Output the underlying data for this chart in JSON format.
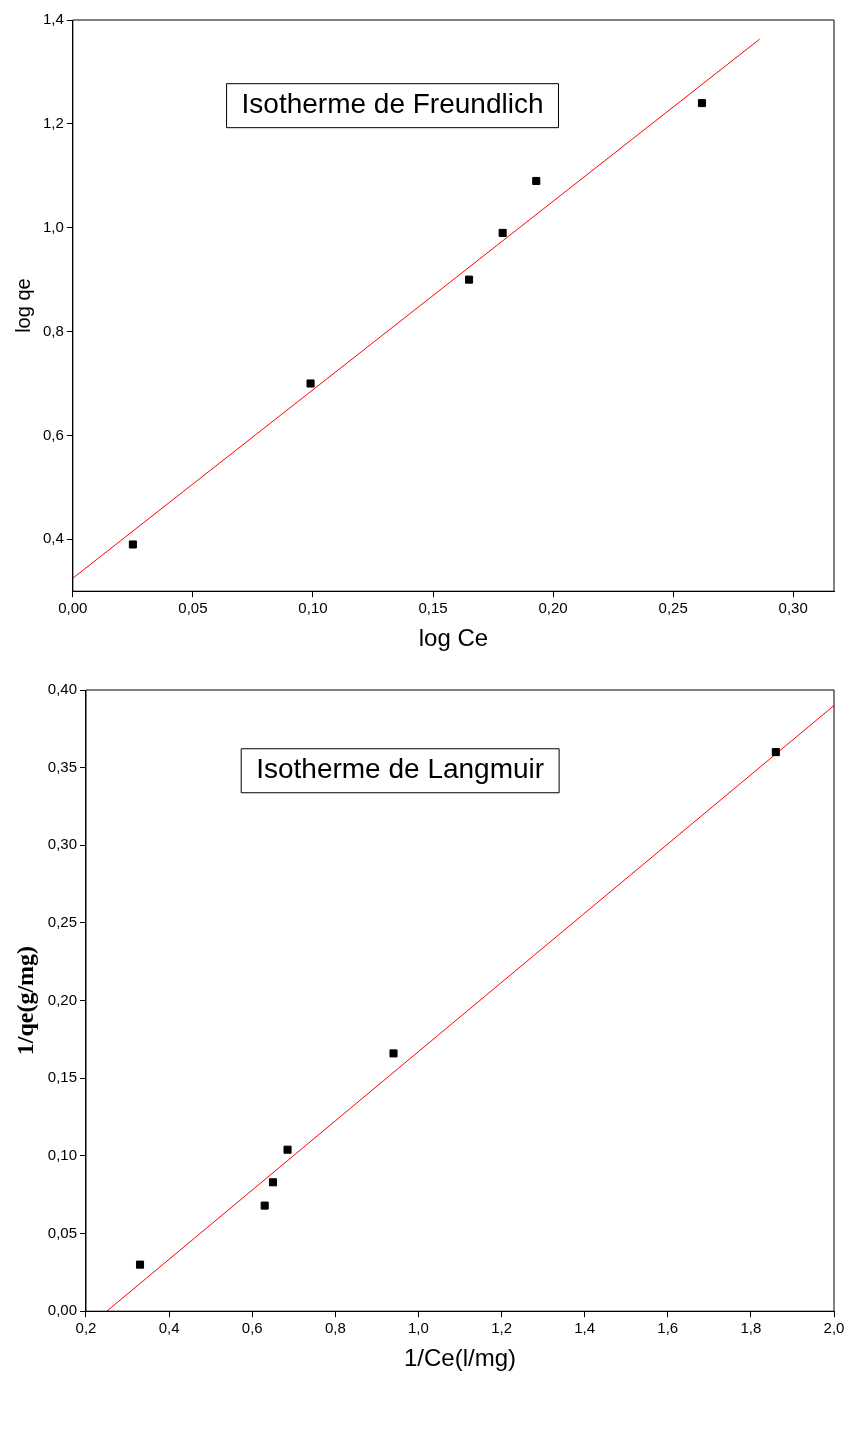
{
  "chart_data": [
    {
      "type": "scatter",
      "xlabel": "log Ce",
      "ylabel": "log qe",
      "annotations": [
        "Isotherme de Freundlich"
      ],
      "xlim": [
        0,
        0.317
      ],
      "ylim": [
        0.3,
        1.4
      ],
      "xticks": [
        {
          "value": 0,
          "label": "0,00"
        },
        {
          "value": 0.05,
          "label": "0,05"
        },
        {
          "value": 0.1,
          "label": "0,10"
        },
        {
          "value": 0.15,
          "label": "0,15"
        },
        {
          "value": 0.2,
          "label": "0,20"
        },
        {
          "value": 0.25,
          "label": "0,25"
        },
        {
          "value": 0.3,
          "label": "0,30"
        }
      ],
      "yticks": [
        {
          "value": 0.4,
          "label": "0,4"
        },
        {
          "value": 0.6,
          "label": "0,6"
        },
        {
          "value": 0.8,
          "label": "0,8"
        },
        {
          "value": 1.0,
          "label": "1,0"
        },
        {
          "value": 1.2,
          "label": "1,2"
        },
        {
          "value": 1.4,
          "label": "1,4"
        }
      ],
      "grid": false,
      "legend": false,
      "series": [
        {
          "marker": "square",
          "color": "#000000",
          "x": [
            0.025,
            0.099,
            0.165,
            0.179,
            0.193,
            0.262
          ],
          "values": [
            0.39,
            0.7,
            0.9,
            0.99,
            1.09,
            1.24
          ]
        },
        {
          "type": "line",
          "marker": "none",
          "color": "#ff0000",
          "x": [
            0,
            0.286
          ],
          "values": [
            0.325,
            1.363
          ]
        }
      ]
    },
    {
      "type": "scatter",
      "xlabel": "1/Ce(l/mg)",
      "ylabel": "1/qe(g/mg)",
      "annotations": [
        "Isotherme de Langmuir"
      ],
      "xlim": [
        0.2,
        2.0
      ],
      "ylim": [
        0,
        0.4
      ],
      "xticks": [
        {
          "value": 0.2,
          "label": "0,2"
        },
        {
          "value": 0.4,
          "label": "0,4"
        },
        {
          "value": 0.6,
          "label": "0,6"
        },
        {
          "value": 0.8,
          "label": "0,8"
        },
        {
          "value": 1.0,
          "label": "1,0"
        },
        {
          "value": 1.2,
          "label": "1,2"
        },
        {
          "value": 1.4,
          "label": "1,4"
        },
        {
          "value": 1.6,
          "label": "1,6"
        },
        {
          "value": 1.8,
          "label": "1,8"
        },
        {
          "value": 2.0,
          "label": "2,0"
        }
      ],
      "yticks": [
        {
          "value": 0,
          "label": "0,00"
        },
        {
          "value": 0.05,
          "label": "0,05"
        },
        {
          "value": 0.1,
          "label": "0,10"
        },
        {
          "value": 0.15,
          "label": "0,15"
        },
        {
          "value": 0.2,
          "label": "0,20"
        },
        {
          "value": 0.25,
          "label": "0,25"
        },
        {
          "value": 0.3,
          "label": "0,30"
        },
        {
          "value": 0.35,
          "label": "0,35"
        },
        {
          "value": 0.4,
          "label": "0,40"
        }
      ],
      "grid": false,
      "legend": false,
      "series": [
        {
          "marker": "square",
          "color": "#000000",
          "x": [
            0.33,
            0.63,
            0.65,
            0.685,
            0.94,
            1.86
          ],
          "values": [
            0.03,
            0.068,
            0.083,
            0.104,
            0.166,
            0.36
          ]
        },
        {
          "type": "line",
          "marker": "none",
          "color": "#ff0000",
          "x": [
            0.25,
            2.0
          ],
          "values": [
            0,
            0.39
          ]
        }
      ]
    }
  ]
}
